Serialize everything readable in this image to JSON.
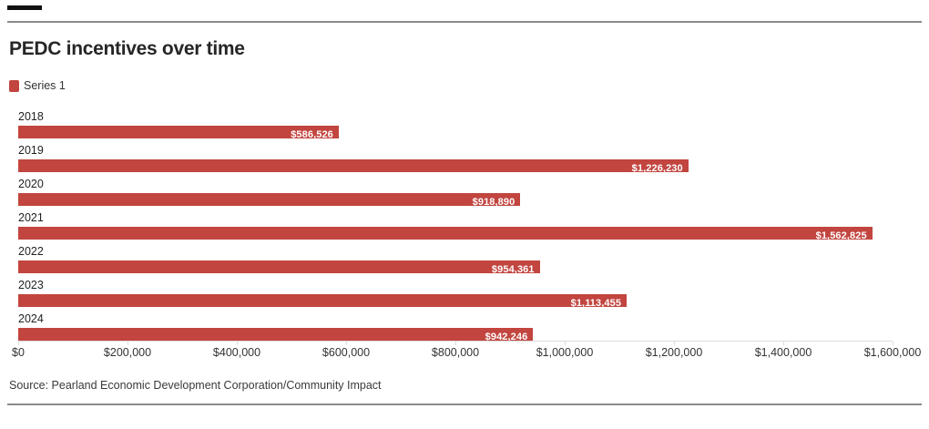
{
  "header": {
    "title": "PEDC incentives over time"
  },
  "legend": {
    "items": [
      {
        "label": "Series 1",
        "color": "#c2453f"
      }
    ]
  },
  "chart_data": {
    "type": "bar",
    "orientation": "horizontal",
    "title": "PEDC incentives over time",
    "categories": [
      "2018",
      "2019",
      "2020",
      "2021",
      "2022",
      "2023",
      "2024"
    ],
    "values": [
      586526,
      1226230,
      918890,
      1562825,
      954361,
      1113455,
      942246
    ],
    "value_labels": [
      "$586,526",
      "$1,226,230",
      "$918,890",
      "$1,562,825",
      "$954,361",
      "$1,113,455",
      "$942,246"
    ],
    "series_name": "Series 1",
    "xlabel": "",
    "ylabel": "",
    "xlim": [
      0,
      1600000
    ],
    "x_ticks": [
      "$0",
      "$200,000",
      "$400,000",
      "$600,000",
      "$800,000",
      "$1,000,000",
      "$1,200,000",
      "$1,400,000",
      "$1,600,000"
    ],
    "x_tick_values": [
      0,
      200000,
      400000,
      600000,
      800000,
      1000000,
      1200000,
      1400000,
      1600000
    ],
    "grid": "off",
    "legend_position": "top-left"
  },
  "footer": {
    "source": "Source: Pearland Economic Development Corporation/Community Impact"
  },
  "colors": {
    "bar": "#c2453f",
    "rule": "#8a8a8a",
    "accent_dash": "#111111",
    "axis": "#dcdcdc",
    "title_text": "#262626",
    "value_label_text": "#ffffff"
  }
}
